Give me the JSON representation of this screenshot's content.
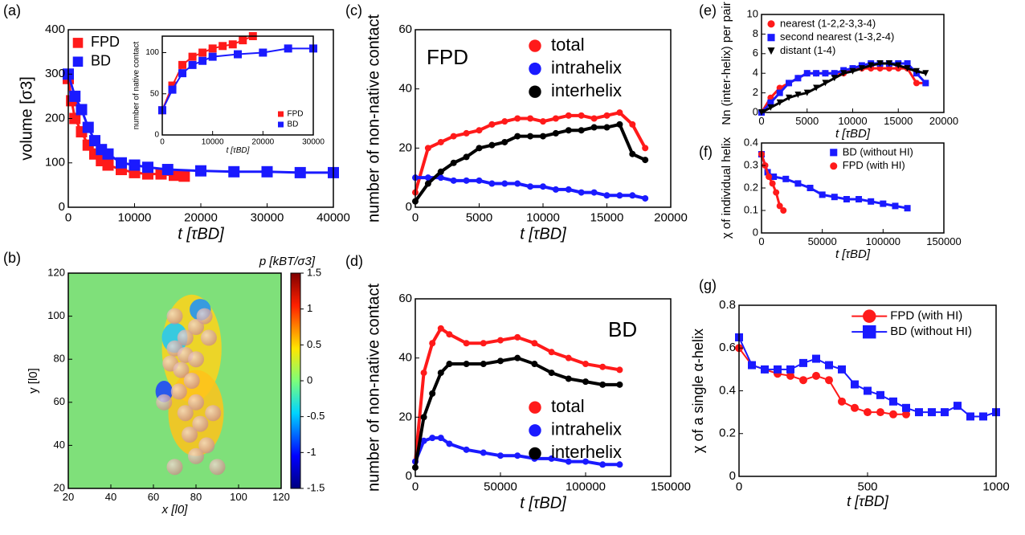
{
  "chart_data": [
    {
      "type": "scatter",
      "label": "(a)",
      "x_label": "t [τBD]",
      "y_label": "volume [σ3]",
      "xlim": [
        0,
        40000
      ],
      "ylim": [
        0,
        400
      ],
      "xticks": [
        0,
        10000,
        20000,
        30000,
        40000
      ],
      "yticks": [
        0,
        100,
        200,
        300,
        400
      ],
      "legend": "upper left",
      "marker": "square",
      "series": [
        {
          "name": "FPD",
          "color": "#ff1a1a",
          "x": [
            0,
            500,
            1000,
            2000,
            3000,
            4000,
            5000,
            6000,
            8000,
            10000,
            12000,
            14000,
            16000,
            17500
          ],
          "values": [
            290,
            240,
            200,
            170,
            140,
            120,
            105,
            95,
            85,
            78,
            75,
            75,
            72,
            70
          ]
        },
        {
          "name": "BD",
          "color": "#1a1aff",
          "x": [
            0,
            1000,
            2000,
            3000,
            4000,
            5000,
            6000,
            8000,
            10000,
            12000,
            15000,
            20000,
            25000,
            30000,
            35000,
            40000
          ],
          "values": [
            300,
            250,
            220,
            180,
            150,
            130,
            120,
            100,
            95,
            90,
            85,
            82,
            80,
            80,
            78,
            78
          ]
        }
      ]
    },
    {
      "type": "scatter",
      "x_label": "t [τBD]",
      "y_label": "number of native contact",
      "xlim": [
        0,
        30000
      ],
      "ylim": [
        0,
        120
      ],
      "xticks": [
        0,
        10000,
        20000,
        30000
      ],
      "yticks": [
        0,
        50,
        100
      ],
      "legend": "lower right",
      "marker": "square",
      "series": [
        {
          "name": "FPD",
          "color": "#ff1a1a",
          "x": [
            0,
            2000,
            4000,
            6000,
            8000,
            10000,
            12000,
            14000,
            16000,
            18000
          ],
          "values": [
            30,
            60,
            85,
            95,
            100,
            105,
            108,
            110,
            115,
            120
          ]
        },
        {
          "name": "BD",
          "color": "#1a1aff",
          "x": [
            0,
            2000,
            4000,
            6000,
            8000,
            10000,
            15000,
            20000,
            25000,
            30000
          ],
          "values": [
            30,
            55,
            75,
            85,
            90,
            95,
            98,
            100,
            105,
            105
          ]
        }
      ]
    },
    {
      "type": "heatmap",
      "label": "(b)",
      "x_label": "x [l0]",
      "y_label": "y [l0]",
      "colorbar_label": "p [kBT/σ3]",
      "xlim": [
        20,
        120
      ],
      "ylim": [
        20,
        120
      ],
      "xticks": [
        20,
        40,
        60,
        80,
        100,
        120
      ],
      "yticks": [
        20,
        40,
        60,
        80,
        100,
        120
      ],
      "clim": [
        -1.5,
        1.5
      ],
      "cticks": [
        -1.5,
        -1,
        -0.5,
        0,
        0.5,
        1,
        1.5
      ]
    },
    {
      "type": "scatter",
      "label": "(c)",
      "x_label": "t [τBD]",
      "y_label": "number of non-native contact",
      "annotation": "FPD",
      "xlim": [
        0,
        20000
      ],
      "ylim": [
        0,
        60
      ],
      "xticks": [
        0,
        5000,
        10000,
        15000,
        20000
      ],
      "yticks": [
        0,
        20,
        40,
        60
      ],
      "legend": "upper right",
      "marker": "circle",
      "series": [
        {
          "name": "total",
          "color": "#ff1a1a",
          "x": [
            0,
            1000,
            2000,
            3000,
            4000,
            5000,
            6000,
            7000,
            8000,
            9000,
            10000,
            11000,
            12000,
            13000,
            14000,
            15000,
            16000,
            17000,
            18000
          ],
          "values": [
            5,
            20,
            22,
            24,
            25,
            26,
            28,
            29,
            30,
            30,
            29,
            30,
            31,
            31,
            30,
            31,
            32,
            28,
            20
          ]
        },
        {
          "name": "intrahelix",
          "color": "#1a1aff",
          "x": [
            0,
            1000,
            2000,
            3000,
            4000,
            5000,
            6000,
            7000,
            8000,
            9000,
            10000,
            11000,
            12000,
            13000,
            14000,
            15000,
            16000,
            17000,
            18000
          ],
          "values": [
            10,
            10,
            10,
            9,
            9,
            9,
            8,
            8,
            8,
            7,
            7,
            6,
            6,
            5,
            5,
            4,
            4,
            4,
            3
          ]
        },
        {
          "name": "interhelix",
          "color": "#000000",
          "x": [
            0,
            1000,
            2000,
            3000,
            4000,
            5000,
            6000,
            7000,
            8000,
            9000,
            10000,
            11000,
            12000,
            13000,
            14000,
            15000,
            16000,
            17000,
            18000
          ],
          "values": [
            2,
            8,
            12,
            15,
            17,
            20,
            21,
            22,
            24,
            24,
            24,
            25,
            26,
            26,
            27,
            27,
            28,
            18,
            16
          ]
        }
      ]
    },
    {
      "type": "scatter",
      "label": "(d)",
      "x_label": "t [τBD]",
      "y_label": "number of non-native contact",
      "annotation": "BD",
      "xlim": [
        0,
        150000
      ],
      "ylim": [
        0,
        60
      ],
      "xticks": [
        0,
        50000,
        100000,
        150000
      ],
      "yticks": [
        0,
        20,
        40,
        60
      ],
      "legend": "lower right",
      "marker": "circle",
      "series": [
        {
          "name": "total",
          "color": "#ff1a1a",
          "x": [
            0,
            5000,
            10000,
            15000,
            20000,
            30000,
            40000,
            50000,
            60000,
            70000,
            80000,
            90000,
            100000,
            110000,
            120000
          ],
          "values": [
            5,
            35,
            45,
            50,
            48,
            45,
            45,
            46,
            47,
            45,
            42,
            40,
            38,
            37,
            36
          ]
        },
        {
          "name": "intrahelix",
          "color": "#1a1aff",
          "x": [
            0,
            5000,
            10000,
            15000,
            20000,
            30000,
            40000,
            50000,
            60000,
            70000,
            80000,
            90000,
            100000,
            110000,
            120000
          ],
          "values": [
            5,
            12,
            13,
            13,
            11,
            9,
            8,
            7,
            7,
            6,
            6,
            5,
            5,
            4,
            4
          ]
        },
        {
          "name": "interhelix",
          "color": "#000000",
          "x": [
            0,
            5000,
            10000,
            15000,
            20000,
            30000,
            40000,
            50000,
            60000,
            70000,
            80000,
            90000,
            100000,
            110000,
            120000
          ],
          "values": [
            3,
            20,
            28,
            35,
            38,
            38,
            38,
            39,
            40,
            38,
            35,
            33,
            32,
            31,
            31
          ]
        }
      ]
    },
    {
      "type": "scatter",
      "label": "(e)",
      "x_label": "t [τBD]",
      "y_label": "Nn (inter-helix) per pair",
      "xlim": [
        0,
        20000
      ],
      "ylim": [
        0,
        10
      ],
      "xticks": [
        0,
        5000,
        10000,
        15000,
        20000
      ],
      "yticks": [
        0,
        2,
        4,
        6,
        8,
        10
      ],
      "legend": "upper left",
      "markers": [
        "circle",
        "square",
        "triangle"
      ],
      "series": [
        {
          "name": "nearest (1-2,2-3,3-4)",
          "color": "#ff1a1a",
          "x": [
            0,
            1000,
            2000,
            3000,
            4000,
            5000,
            6000,
            7000,
            8000,
            9000,
            10000,
            11000,
            12000,
            13000,
            14000,
            15000,
            16000,
            17000,
            18000
          ],
          "values": [
            0,
            1.5,
            2.5,
            3,
            3.5,
            4,
            4,
            4,
            4,
            4,
            4.5,
            4.5,
            4.5,
            4.5,
            4.5,
            4.5,
            4.5,
            3,
            3
          ]
        },
        {
          "name": "second nearest (1-3,2-4)",
          "color": "#1a1aff",
          "x": [
            0,
            1000,
            2000,
            3000,
            4000,
            5000,
            6000,
            7000,
            8000,
            9000,
            10000,
            11000,
            12000,
            13000,
            14000,
            15000,
            16000,
            17000,
            18000
          ],
          "values": [
            0,
            1,
            2,
            3,
            3.5,
            4,
            4,
            4,
            4,
            4.3,
            4.5,
            4.8,
            5,
            5,
            5,
            5,
            5,
            4,
            3
          ]
        },
        {
          "name": "distant (1-4)",
          "color": "#000000",
          "x": [
            0,
            1000,
            2000,
            3000,
            4000,
            5000,
            6000,
            7000,
            8000,
            9000,
            10000,
            11000,
            12000,
            13000,
            14000,
            15000,
            16000,
            17000,
            18000
          ],
          "values": [
            0,
            0.5,
            1,
            1.5,
            1.8,
            2,
            2.5,
            3,
            3.5,
            4,
            4.2,
            4.5,
            4.8,
            5,
            5,
            4.8,
            4.5,
            4.2,
            4
          ]
        }
      ]
    },
    {
      "type": "scatter",
      "label": "(f)",
      "x_label": "t [τBD]",
      "y_label": "χ of individual helix",
      "xlim": [
        0,
        150000
      ],
      "ylim": [
        0,
        0.4
      ],
      "xticks": [
        0,
        50000,
        100000,
        150000
      ],
      "yticks": [
        0,
        0.1,
        0.2,
        0.3,
        0.4
      ],
      "legend": "upper right",
      "markers": [
        "square",
        "circle"
      ],
      "series": [
        {
          "name": "BD (without HI)",
          "color": "#1a1aff",
          "x": [
            0,
            5000,
            10000,
            20000,
            30000,
            40000,
            50000,
            60000,
            70000,
            80000,
            90000,
            100000,
            110000,
            120000
          ],
          "values": [
            0.35,
            0.27,
            0.25,
            0.24,
            0.22,
            0.2,
            0.17,
            0.16,
            0.15,
            0.15,
            0.14,
            0.13,
            0.12,
            0.11
          ]
        },
        {
          "name": "FPD (with HI)",
          "color": "#ff1a1a",
          "x": [
            0,
            3000,
            6000,
            9000,
            12000,
            15000,
            18000
          ],
          "values": [
            0.35,
            0.3,
            0.25,
            0.22,
            0.18,
            0.12,
            0.1
          ]
        }
      ]
    },
    {
      "type": "line",
      "label": "(g)",
      "x_label": "t [τBD]",
      "y_label": "χ of a single α-helix",
      "xlim": [
        0,
        1000
      ],
      "ylim": [
        0,
        0.8
      ],
      "xticks": [
        0,
        500,
        1000
      ],
      "yticks": [
        0,
        0.2,
        0.4,
        0.6,
        0.8
      ],
      "legend": "upper right",
      "markers": [
        "circle",
        "square"
      ],
      "series": [
        {
          "name": "FPD (with HI)",
          "color": "#ff1a1a",
          "x": [
            0,
            50,
            100,
            150,
            200,
            250,
            300,
            350,
            400,
            450,
            500,
            550,
            600,
            650
          ],
          "values": [
            0.6,
            0.52,
            0.5,
            0.48,
            0.47,
            0.45,
            0.47,
            0.45,
            0.35,
            0.32,
            0.3,
            0.3,
            0.29,
            0.29
          ]
        },
        {
          "name": "BD (without HI)",
          "color": "#1a1aff",
          "x": [
            0,
            50,
            100,
            150,
            200,
            250,
            300,
            350,
            400,
            450,
            500,
            550,
            600,
            650,
            700,
            750,
            800,
            850,
            900,
            950,
            1000
          ],
          "values": [
            0.65,
            0.52,
            0.5,
            0.5,
            0.5,
            0.53,
            0.55,
            0.52,
            0.5,
            0.43,
            0.4,
            0.38,
            0.35,
            0.32,
            0.3,
            0.3,
            0.3,
            0.33,
            0.28,
            0.28,
            0.3
          ]
        }
      ]
    }
  ]
}
